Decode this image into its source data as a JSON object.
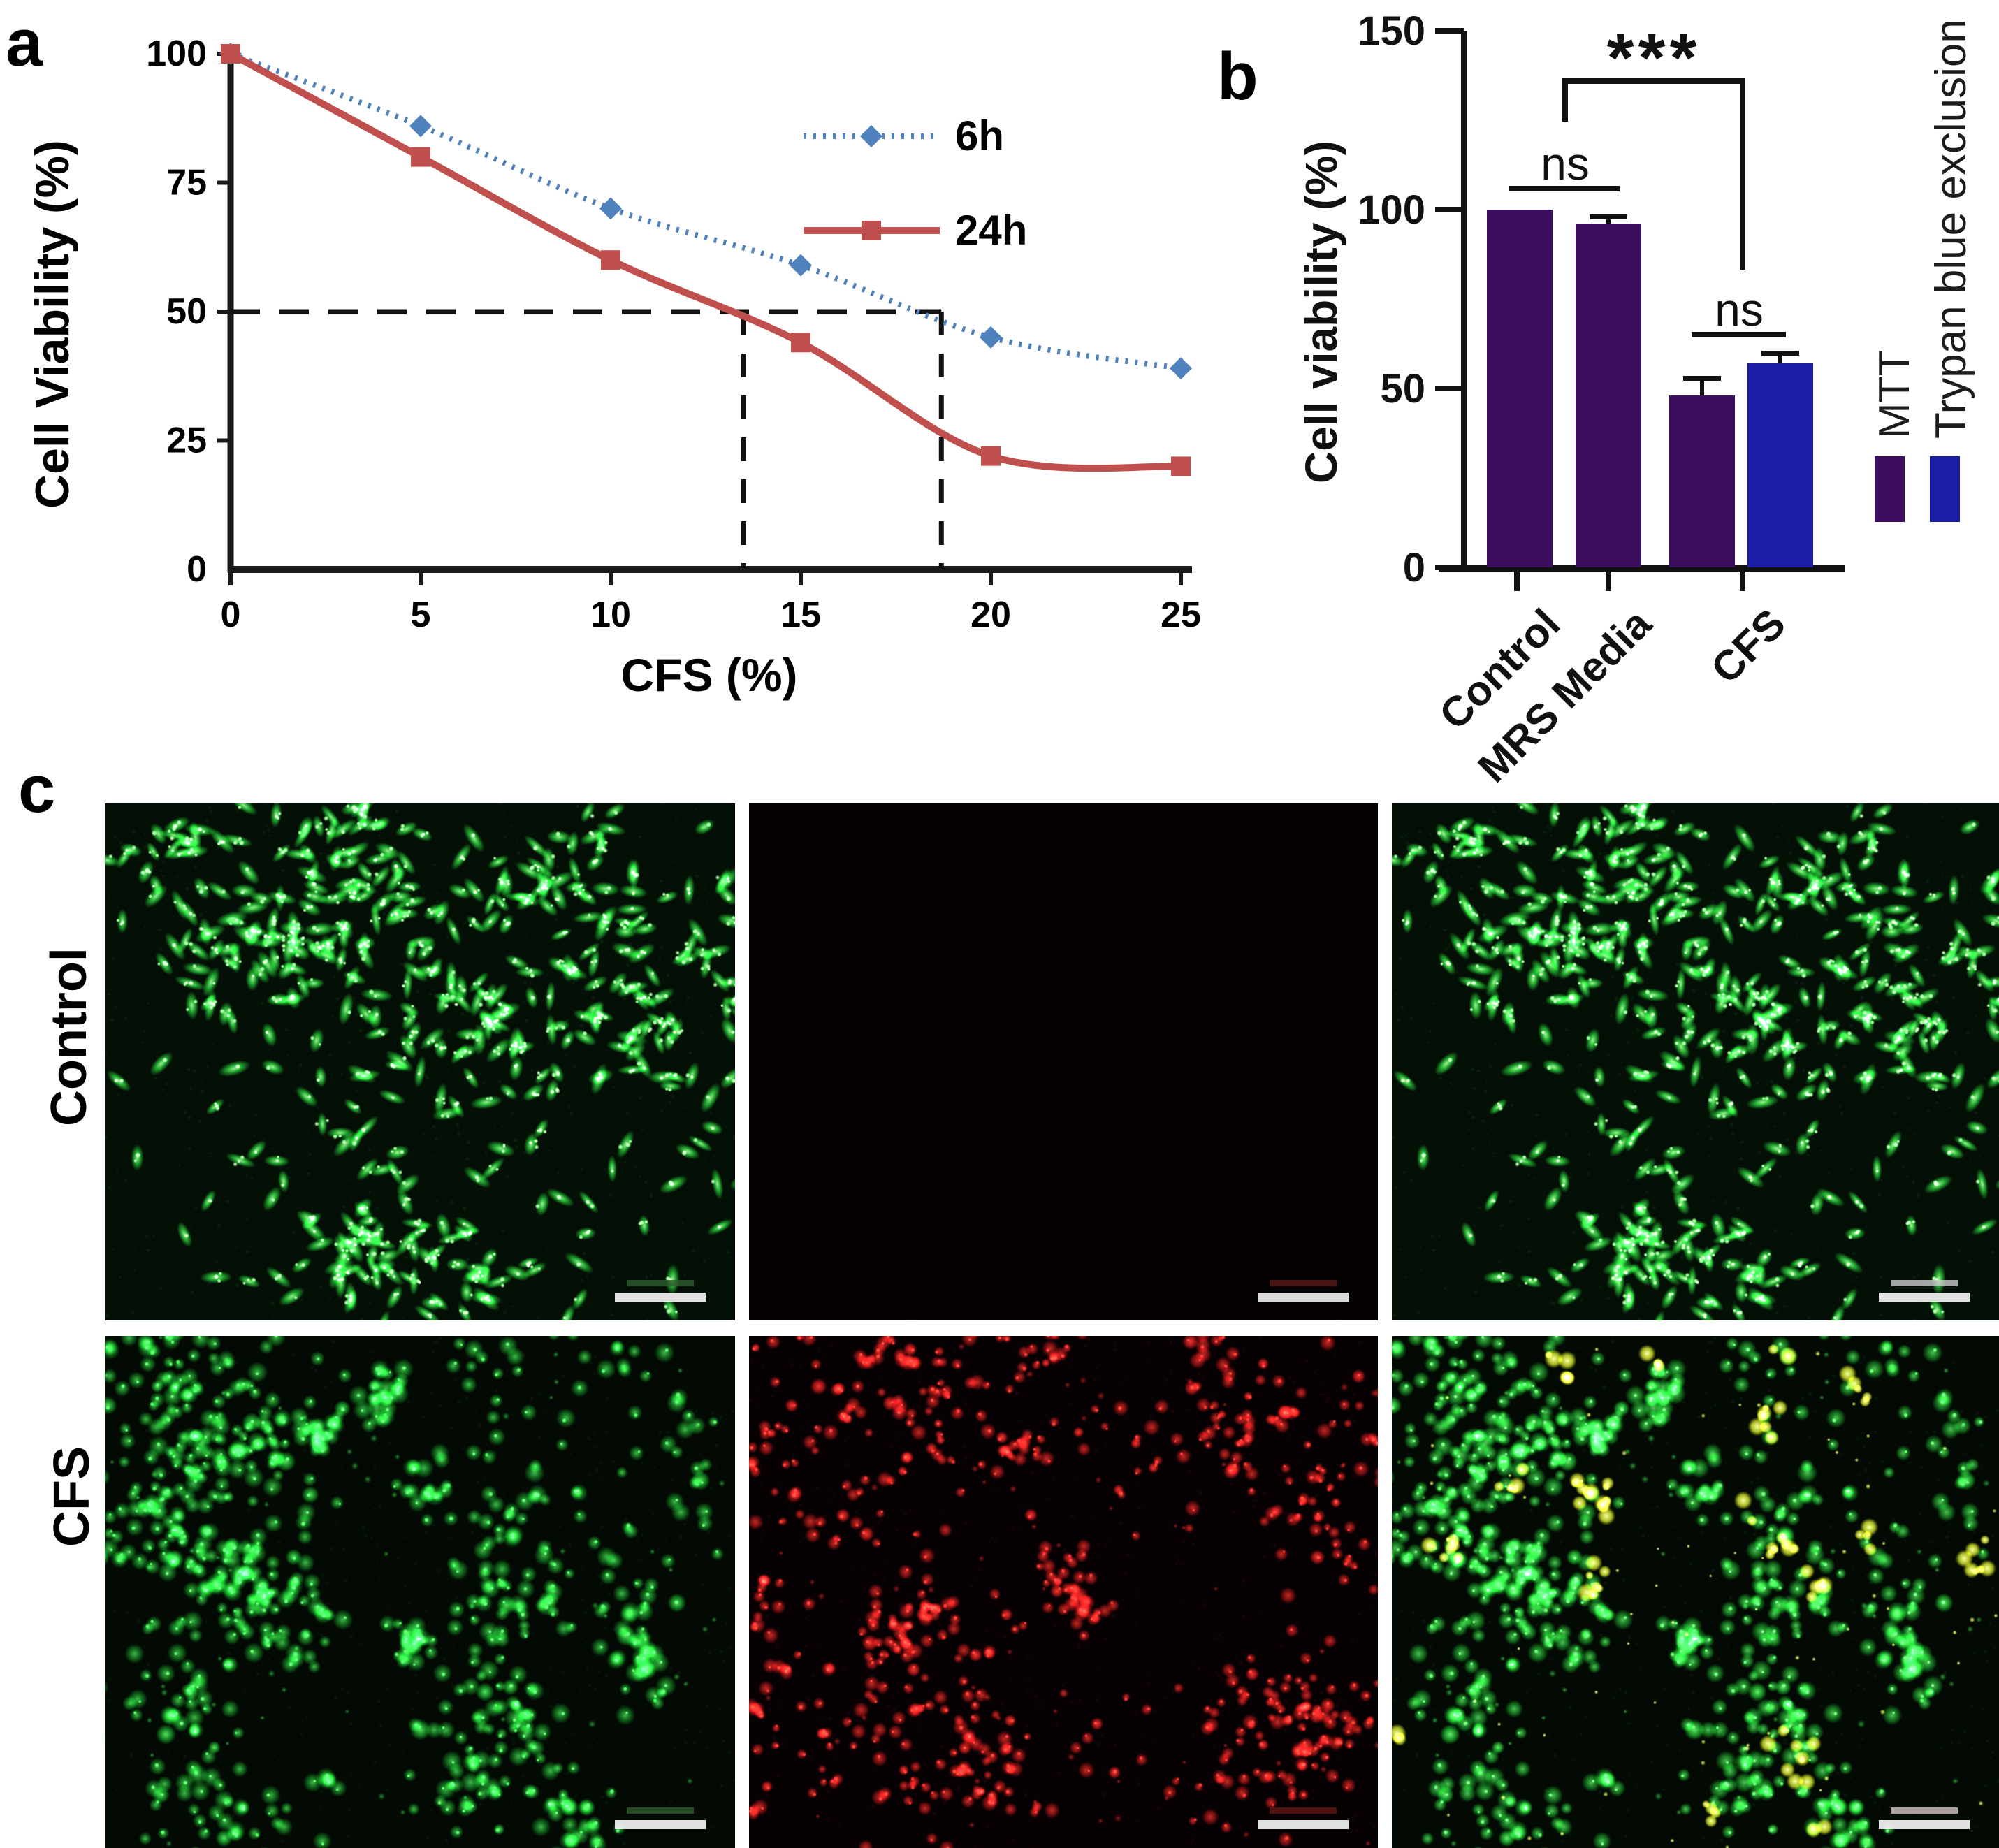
{
  "figure": {
    "labels": {
      "a": "a",
      "b": "b",
      "c": "c"
    }
  },
  "chart_data": [
    {
      "id": "dose_response_curve",
      "type": "line",
      "title": "",
      "xlabel": "CFS (%)",
      "ylabel": "Cell Viability (%)",
      "x": [
        0,
        5,
        10,
        15,
        20,
        25
      ],
      "xlim": [
        0,
        25
      ],
      "ylim": [
        0,
        100
      ],
      "xticks": [
        0,
        5,
        10,
        15,
        20,
        25
      ],
      "yticks": [
        0,
        25,
        50,
        75,
        100
      ],
      "grid": false,
      "legend_position": "upper right",
      "series": [
        {
          "name": "6h",
          "color": "#4f81bd",
          "line": "dotted",
          "marker": "diamond",
          "values": [
            100,
            86,
            70,
            59,
            45,
            39
          ]
        },
        {
          "name": "24h",
          "color": "#c0504d",
          "line": "solid",
          "marker": "square",
          "values": [
            100,
            80,
            60,
            44,
            22,
            20
          ]
        }
      ],
      "guides": {
        "horizontal_y": 50,
        "vertical_x": [
          13.5,
          18.7
        ],
        "color": "#111111",
        "style": "dashed"
      }
    },
    {
      "id": "viability_assay_bars",
      "type": "bar",
      "title": "",
      "ylabel": "Cell viability (%)",
      "categories": [
        "Control",
        "MRS Media",
        "CFS"
      ],
      "ylim": [
        0,
        150
      ],
      "yticks": [
        0,
        50,
        100,
        150
      ],
      "grid": false,
      "series": [
        {
          "name": "MTT",
          "color": "#3c0e5e",
          "bars": [
            {
              "category": "Control",
              "value": 100,
              "error": 0
            },
            {
              "category": "MRS Media",
              "value": 96,
              "error": 2
            },
            {
              "category": "CFS",
              "value": 48,
              "error": 5
            }
          ]
        },
        {
          "name": "Trypan blue exclusion",
          "color": "#1d1da5",
          "bars": [
            {
              "category": "CFS",
              "value": 57,
              "error": 3
            }
          ]
        }
      ],
      "annotations": [
        {
          "text": "ns",
          "span": "Control vs MRS Media"
        },
        {
          "text": "ns",
          "span": "CFS MTT vs CFS Trypan blue"
        },
        {
          "text": "***",
          "span": "MRS Media vs CFS"
        }
      ]
    }
  ],
  "micrographs": {
    "row_labels": [
      "Control",
      "CFS"
    ],
    "panels": [
      {
        "row": "Control",
        "channel": "green",
        "kind": "spindle",
        "seed": 11,
        "bg": "#041006",
        "body": "30,165,43",
        "highlight": "143,233,138",
        "clusters": 13,
        "singles": 120,
        "scalebar": {
          "bar": "#f2f2f2",
          "companion": "#2e5d2e"
        }
      },
      {
        "row": "Control",
        "channel": "red",
        "kind": "empty",
        "seed": 2,
        "bg": "#050103",
        "body": "70,12,16",
        "highlight": "90,20,22",
        "scalebar": {
          "bar": "#ececec",
          "companion": "#5a1a1a"
        }
      },
      {
        "row": "Control",
        "channel": "merge",
        "kind": "spindle",
        "seed": 11,
        "bg": "#041006",
        "body": "32,170,45",
        "highlight": "150,240,140",
        "clusters": 13,
        "singles": 120,
        "scalebar": {
          "bar": "#f2f2f2",
          "companion": "#cccccc"
        }
      },
      {
        "row": "CFS",
        "channel": "green",
        "kind": "blob",
        "seed": 21,
        "bg": "#030a03",
        "body": "18,128,32",
        "highlight": "73,217,87",
        "clusters": 58,
        "rbase": 8,
        "rvar": 7,
        "bright_chance": 0.08,
        "scalebar": {
          "bar": "#f2f2f2",
          "companion": "#2e5d2e"
        }
      },
      {
        "row": "CFS",
        "channel": "red",
        "kind": "blob",
        "seed": 22,
        "bg": "#070103",
        "body": "169,20,20",
        "highlight": "231,52,42",
        "clusters": 46,
        "rbase": 6,
        "rvar": 6,
        "bright_chance": 0.12,
        "scalebar": {
          "bar": "#f2f2f2",
          "companion": "#611414"
        }
      },
      {
        "row": "CFS",
        "channel": "merge",
        "kind": "blob",
        "seed": 21,
        "bg": "#030a03",
        "body": "24,150,38",
        "highlight": "90,230,100",
        "clusters": 58,
        "rbase": 8,
        "rvar": 7,
        "bright_chance": 0.08,
        "accent": {
          "seed": 31,
          "body": "210,220,40",
          "highlight": "250,252,150",
          "clusters": 20
        },
        "scalebar": {
          "bar": "#f2f2f2",
          "companion": "#d8c4c4"
        }
      }
    ]
  }
}
